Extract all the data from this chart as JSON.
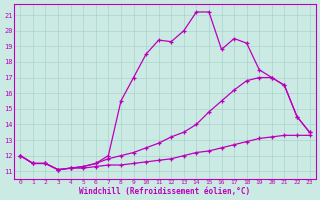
{
  "background_color": "#cceae4",
  "grid_color": "#aad4cc",
  "line_color": "#bb00bb",
  "xlabel": "Windchill (Refroidissement éolien,°C)",
  "ylabel_ticks": [
    11,
    12,
    13,
    14,
    15,
    16,
    17,
    18,
    19,
    20,
    21
  ],
  "xlabel_ticks": [
    0,
    1,
    2,
    3,
    4,
    5,
    6,
    7,
    8,
    9,
    10,
    11,
    12,
    13,
    14,
    15,
    16,
    17,
    18,
    19,
    20,
    21,
    22,
    23
  ],
  "xlim": [
    -0.5,
    23.5
  ],
  "ylim": [
    10.5,
    21.7
  ],
  "curve1_x": [
    0,
    1,
    2,
    3,
    4,
    5,
    6,
    7,
    8,
    9,
    10,
    11,
    12,
    13,
    14,
    15,
    16,
    17,
    18,
    19,
    20,
    21,
    22,
    23
  ],
  "curve1_y": [
    12.0,
    11.5,
    11.5,
    11.1,
    11.2,
    11.2,
    11.3,
    11.4,
    11.4,
    11.5,
    11.6,
    11.7,
    11.8,
    12.0,
    12.2,
    12.3,
    12.5,
    12.7,
    12.9,
    13.1,
    13.2,
    13.3,
    13.3,
    13.3
  ],
  "curve2_x": [
    0,
    1,
    2,
    3,
    4,
    5,
    6,
    7,
    8,
    9,
    10,
    11,
    12,
    13,
    14,
    15,
    16,
    17,
    18,
    19,
    20,
    21,
    22,
    23
  ],
  "curve2_y": [
    12.0,
    11.5,
    11.5,
    11.1,
    11.2,
    11.3,
    11.5,
    11.8,
    12.0,
    12.2,
    12.5,
    12.8,
    13.2,
    13.5,
    14.0,
    14.8,
    15.5,
    16.2,
    16.8,
    17.0,
    17.0,
    16.5,
    14.5,
    13.5
  ],
  "curve3_x": [
    0,
    1,
    2,
    3,
    4,
    5,
    6,
    7,
    8,
    9,
    10,
    11,
    12,
    13,
    14,
    15,
    16,
    17,
    18,
    19,
    20,
    21,
    22,
    23
  ],
  "curve3_y": [
    12.0,
    11.5,
    11.5,
    11.1,
    11.2,
    11.3,
    11.5,
    12.0,
    15.5,
    17.0,
    18.5,
    19.4,
    19.3,
    20.0,
    21.2,
    21.2,
    18.8,
    19.5,
    19.2,
    17.5,
    17.0,
    16.5,
    14.5,
    13.5
  ]
}
